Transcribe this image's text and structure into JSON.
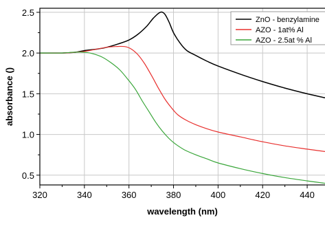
{
  "chart_data": {
    "type": "line",
    "title": "",
    "xlabel": "wavelength (nm)",
    "ylabel": "absorbance ()",
    "xlim": [
      320,
      448
    ],
    "ylim": [
      0.38,
      2.55
    ],
    "xticks": [
      320,
      340,
      360,
      380,
      400,
      420,
      440
    ],
    "xtick_labels": [
      "320",
      "340",
      "360",
      "380",
      "400",
      "420",
      "440"
    ],
    "yticks": [
      0.5,
      1.0,
      1.5,
      2.0,
      2.5
    ],
    "ytick_labels": [
      "0.5",
      "1.0",
      "1.5",
      "2.0",
      "2.5"
    ],
    "grid": true,
    "legend_position": "top-right",
    "series": [
      {
        "name": "ZnO - benzylamine",
        "color": "#000000",
        "points": [
          [
            320,
            2.0
          ],
          [
            330,
            2.0
          ],
          [
            336,
            2.01
          ],
          [
            340,
            2.03
          ],
          [
            346,
            2.05
          ],
          [
            350,
            2.07
          ],
          [
            355,
            2.11
          ],
          [
            360,
            2.16
          ],
          [
            364,
            2.23
          ],
          [
            368,
            2.33
          ],
          [
            371,
            2.43
          ],
          [
            374,
            2.5
          ],
          [
            376,
            2.48
          ],
          [
            378,
            2.38
          ],
          [
            380,
            2.25
          ],
          [
            383,
            2.12
          ],
          [
            386,
            2.03
          ],
          [
            390,
            1.97
          ],
          [
            395,
            1.9
          ],
          [
            400,
            1.84
          ],
          [
            410,
            1.74
          ],
          [
            420,
            1.65
          ],
          [
            430,
            1.57
          ],
          [
            440,
            1.5
          ],
          [
            448,
            1.45
          ]
        ]
      },
      {
        "name": "AZO - 1at% Al",
        "color": "#e8302e",
        "points": [
          [
            320,
            2.0
          ],
          [
            330,
            2.0
          ],
          [
            336,
            2.01
          ],
          [
            340,
            2.02
          ],
          [
            346,
            2.05
          ],
          [
            350,
            2.07
          ],
          [
            354,
            2.08
          ],
          [
            358,
            2.08
          ],
          [
            361,
            2.05
          ],
          [
            364,
            1.98
          ],
          [
            367,
            1.87
          ],
          [
            370,
            1.73
          ],
          [
            373,
            1.58
          ],
          [
            376,
            1.44
          ],
          [
            379,
            1.33
          ],
          [
            382,
            1.24
          ],
          [
            386,
            1.17
          ],
          [
            390,
            1.12
          ],
          [
            395,
            1.07
          ],
          [
            400,
            1.03
          ],
          [
            410,
            0.97
          ],
          [
            420,
            0.91
          ],
          [
            430,
            0.86
          ],
          [
            440,
            0.82
          ],
          [
            448,
            0.79
          ]
        ]
      },
      {
        "name": "AZO - 2.5at % Al",
        "color": "#3aa63a",
        "points": [
          [
            320,
            2.0
          ],
          [
            330,
            2.0
          ],
          [
            335,
            2.01
          ],
          [
            340,
            2.01
          ],
          [
            344,
            1.99
          ],
          [
            348,
            1.95
          ],
          [
            352,
            1.88
          ],
          [
            356,
            1.79
          ],
          [
            360,
            1.66
          ],
          [
            363,
            1.55
          ],
          [
            366,
            1.41
          ],
          [
            369,
            1.28
          ],
          [
            372,
            1.15
          ],
          [
            375,
            1.04
          ],
          [
            378,
            0.95
          ],
          [
            381,
            0.88
          ],
          [
            385,
            0.81
          ],
          [
            390,
            0.75
          ],
          [
            395,
            0.7
          ],
          [
            400,
            0.65
          ],
          [
            410,
            0.58
          ],
          [
            420,
            0.52
          ],
          [
            430,
            0.47
          ],
          [
            440,
            0.43
          ],
          [
            448,
            0.4
          ]
        ]
      }
    ]
  }
}
